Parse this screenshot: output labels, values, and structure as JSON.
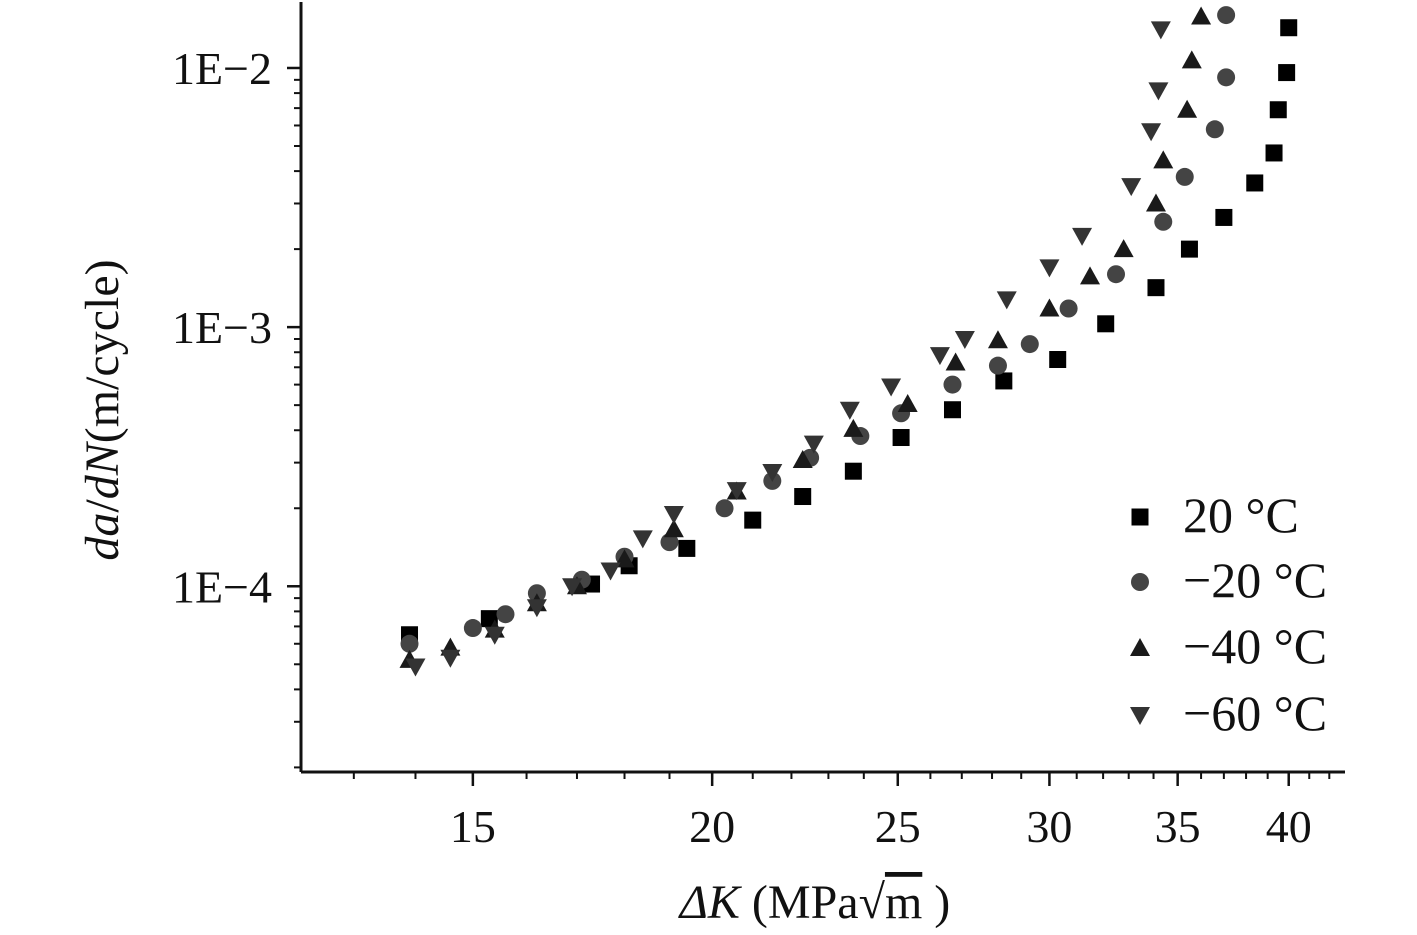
{
  "chart_data": {
    "type": "scatter",
    "title": "",
    "xlabel": {
      "prefix": "ΔK",
      "unit_open": " (MPa",
      "radical": "√",
      "radicand": "m",
      "unit_close": " )"
    },
    "ylabel": {
      "part1": "da",
      "slash": "/",
      "part2": "dN",
      "unit": "(m/cycle)"
    },
    "xscale": "log",
    "yscale": "log",
    "xlim": [
      12.2,
      42.8
    ],
    "ylim": [
      1.92e-05,
      0.0175
    ],
    "xticks": [
      {
        "value": 15,
        "label": "15"
      },
      {
        "value": 20,
        "label": "20"
      },
      {
        "value": 25,
        "label": "25"
      },
      {
        "value": 30,
        "label": "30"
      },
      {
        "value": 35,
        "label": "35"
      },
      {
        "value": 40,
        "label": "40"
      }
    ],
    "yticks": [
      {
        "value": 0.0001,
        "label": "1E−4"
      },
      {
        "value": 0.001,
        "label": "1E−3"
      },
      {
        "value": 0.01,
        "label": "1E−2"
      }
    ],
    "legend_position": "bottom-right",
    "series": [
      {
        "name": "20 °C",
        "marker": "square",
        "color": "#000000",
        "x": [
          13.9,
          15.3,
          17.3,
          18.1,
          19.4,
          21.0,
          22.3,
          23.7,
          25.1,
          26.7,
          28.4,
          30.3,
          32.1,
          34.1,
          35.5,
          37.0,
          38.4,
          39.3,
          39.5,
          39.9,
          40.0
        ],
        "y": [
          6.5e-05,
          7.5e-05,
          0.000102,
          0.00012,
          0.00014,
          0.00018,
          0.000222,
          0.000278,
          0.000375,
          0.00048,
          0.00062,
          0.00075,
          0.00103,
          0.00142,
          0.002,
          0.00265,
          0.0036,
          0.0047,
          0.0069,
          0.0096,
          0.0143
        ]
      },
      {
        "name": "−20 °C",
        "marker": "circle",
        "color": "#444444",
        "x": [
          13.9,
          15.0,
          15.6,
          16.2,
          17.1,
          18.0,
          19.0,
          20.3,
          21.5,
          22.5,
          23.9,
          25.1,
          26.7,
          28.2,
          29.3,
          30.7,
          32.5,
          34.4,
          35.3,
          36.6,
          37.1,
          37.1
        ],
        "y": [
          6e-05,
          6.9e-05,
          7.8e-05,
          9.4e-05,
          0.000106,
          0.00013,
          0.000148,
          0.0002,
          0.000255,
          0.000313,
          0.00038,
          0.000465,
          0.0006,
          0.00071,
          0.00086,
          0.00118,
          0.0016,
          0.00255,
          0.0038,
          0.0058,
          0.0092,
          0.016
        ]
      },
      {
        "name": "−40 °C",
        "marker": "triangle-up",
        "color": "#1a1a1a",
        "x": [
          13.9,
          14.6,
          15.4,
          16.2,
          17.0,
          18.0,
          19.1,
          20.6,
          22.3,
          23.7,
          25.3,
          26.8,
          28.2,
          30.0,
          31.5,
          32.8,
          34.1,
          34.4,
          35.4,
          35.6,
          36.0
        ],
        "y": [
          5.2e-05,
          5.8e-05,
          6.8e-05,
          8.6e-05,
          0.0001,
          0.000127,
          0.000166,
          0.000232,
          0.000307,
          0.000405,
          0.000505,
          0.00073,
          0.00089,
          0.00118,
          0.00157,
          0.002,
          0.003,
          0.0044,
          0.0069,
          0.0107,
          0.0158
        ]
      },
      {
        "name": "−60 °C",
        "marker": "triangle-down",
        "color": "#333333",
        "x": [
          14.0,
          14.6,
          15.4,
          16.2,
          16.9,
          17.7,
          18.4,
          19.1,
          20.6,
          21.5,
          22.6,
          23.6,
          24.8,
          26.3,
          27.1,
          28.5,
          30.0,
          31.2,
          33.1,
          33.9,
          34.2,
          34.3
        ],
        "y": [
          4.9e-05,
          5.3e-05,
          6.5e-05,
          8.3e-05,
          0.0001,
          0.000115,
          0.000153,
          0.00019,
          0.000235,
          0.000276,
          0.000355,
          0.00048,
          0.00059,
          0.00078,
          0.0009,
          0.00128,
          0.0017,
          0.00225,
          0.0035,
          0.0057,
          0.0082,
          0.0141
        ]
      }
    ]
  }
}
